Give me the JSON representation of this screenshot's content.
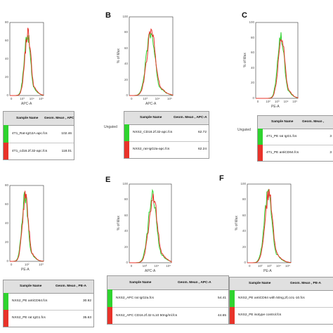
{
  "panels": [
    {
      "letter": "",
      "ylabel": "",
      "xlabel": "APC-A",
      "yticks": [
        "80",
        "60",
        "40",
        "20",
        "0"
      ],
      "xticks": [
        "0",
        "10³",
        "10⁴",
        "10⁵"
      ],
      "ungated": "",
      "legend": {
        "headers": [
          "Sample Name",
          "Geom. Mean , APC-A"
        ],
        "rows": [
          {
            "name": "4T1_Rat-IgG2A-apc.fcs",
            "value": "102.46",
            "color": "#2fd32f"
          },
          {
            "name": "4T1_cd16.2f.32-apc.fcs",
            "value": "118.01",
            "color": "#e8332a"
          }
        ]
      },
      "colors": {
        "green": "#2fd32f",
        "red": "#e8332a"
      }
    },
    {
      "letter": "B",
      "ylabel": "% of Max",
      "xlabel": "APC-A",
      "yticks": [
        "100",
        "80",
        "60",
        "40",
        "20",
        "0"
      ],
      "xticks": [
        "0",
        "10³",
        "10⁴",
        "10⁵"
      ],
      "ungated": "Ungated",
      "legend": {
        "headers": [
          "Sample Name",
          "Geom. Mean , APC-A"
        ],
        "rows": [
          {
            "name": "NXS2_CD16.2f.32-apc.fcs",
            "value": "62.72",
            "color": "#2fd32f"
          },
          {
            "name": "NXS2_rat-IgG2a-apc.fcs",
            "value": "62.24",
            "color": "#e8332a"
          }
        ]
      },
      "colors": {
        "green": "#2fd32f",
        "red": "#e8332a"
      }
    },
    {
      "letter": "C",
      "ylabel": "% of Max",
      "xlabel": "PE-A",
      "yticks": [
        "100",
        "80",
        "60",
        "40",
        "20",
        "0"
      ],
      "xticks": [
        "0",
        "10²",
        "10³",
        "10⁴",
        "10⁵"
      ],
      "ungated": "Ungated",
      "legend": {
        "headers": [
          "Sample Name",
          "Geom. Mean ,"
        ],
        "rows": [
          {
            "name": "4T1_PE rat IgG1.fcs",
            "value": "3",
            "color": "#2fd32f"
          },
          {
            "name": "4T1_PE antiCD64.fcs",
            "value": "3",
            "color": "#e8332a"
          }
        ]
      },
      "colors": {
        "green": "#2fd32f",
        "red": "#e8332a"
      }
    },
    {
      "letter": "",
      "ylabel": "",
      "xlabel": "PE-A",
      "yticks": [
        "80",
        "60",
        "40",
        "20",
        "0"
      ],
      "xticks": [
        "0",
        "10²",
        "10³"
      ],
      "ungated": "",
      "legend": {
        "headers": [
          "Sample Name",
          "Geom. Mean , PE-A"
        ],
        "rows": [
          {
            "name": "NXS2_PE antiCD64.fcs",
            "value": "30.92",
            "color": "#2fd32f"
          },
          {
            "name": "NXS2_PE rat IgG1.fcs",
            "value": "35.63",
            "color": "#e8332a"
          }
        ]
      },
      "colors": {
        "green": "#2fd32f",
        "red": "#e8332a"
      }
    },
    {
      "letter": "E",
      "ylabel": "% of Max",
      "xlabel": "APC-A",
      "yticks": [
        "100",
        "80",
        "60",
        "40",
        "20",
        "0"
      ],
      "xticks": [
        "0",
        "10³",
        "10⁴",
        "10⁵"
      ],
      "ungated": "",
      "legend": {
        "headers": [
          "Sample Name",
          "Geom. Mean , APC-A"
        ],
        "rows": [
          {
            "name": "NXS2_APC rat IgG2a.fcs",
            "value": "54.41",
            "color": "#2fd32f"
          },
          {
            "name": "NXS2_APC CD16.2f.32 IL10 50ng/ml.fcs",
            "value": "44.65",
            "color": "#e8332a"
          }
        ]
      },
      "colors": {
        "green": "#2fd32f",
        "red": "#e8332a"
      }
    },
    {
      "letter": "F",
      "ylabel": "% of Max",
      "xlabel": "PE-A",
      "yticks": [
        "100",
        "80",
        "60",
        "40",
        "20",
        "0"
      ],
      "xticks": [
        "0",
        "10²",
        "10³",
        "10⁴",
        "10⁵"
      ],
      "ungated": "",
      "legend": {
        "headers": [
          "Sample Name",
          "Geom. Mean , PE-A"
        ],
        "rows": [
          {
            "name": "NXS2_PE antiCD64 with 50ng,2f,ccIL-10.fcs",
            "value": "",
            "color": "#2fd32f"
          },
          {
            "name": "NXS2_PE isotype control.fcs",
            "value": "",
            "color": "#e8332a"
          }
        ]
      },
      "colors": {
        "green": "#2fd32f",
        "red": "#e8332a"
      }
    }
  ]
}
